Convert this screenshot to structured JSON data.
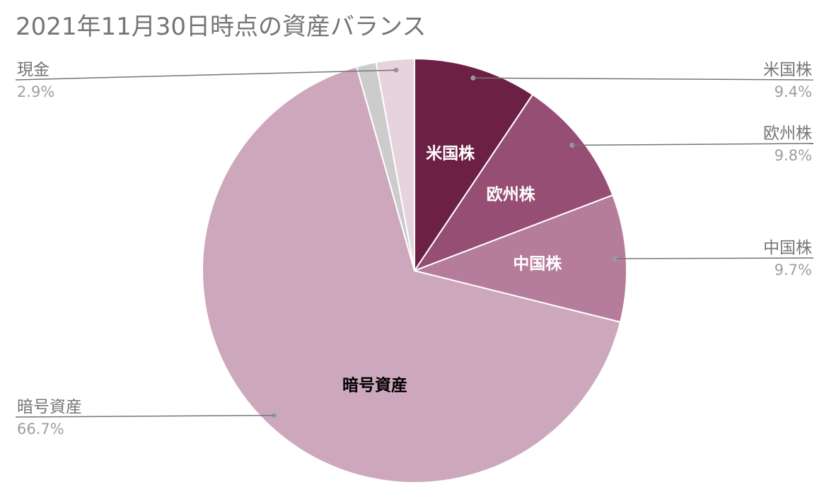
{
  "chart_data": {
    "type": "pie",
    "title": "2021年11月30日時点の資産バランス",
    "slices": [
      {
        "name": "米国株",
        "value": 9.4,
        "value_label": "9.4%",
        "color": "#6c2045",
        "inside_label": true,
        "inside_label_color": "#ffffff",
        "callout": "right"
      },
      {
        "name": "欧州株",
        "value": 9.8,
        "value_label": "9.8%",
        "color": "#974e74",
        "inside_label": true,
        "inside_label_color": "#ffffff",
        "callout": "right"
      },
      {
        "name": "中国株",
        "value": 9.7,
        "value_label": "9.7%",
        "color": "#b67c9b",
        "inside_label": true,
        "inside_label_color": "#ffffff",
        "callout": "right"
      },
      {
        "name": "暗号資産",
        "value": 66.7,
        "value_label": "66.7%",
        "color": "#cda8bd",
        "inside_label": true,
        "inside_label_color": "#000000",
        "callout": "left"
      },
      {
        "name": "",
        "value": 1.5,
        "value_label": "",
        "color": "#cccccc",
        "inside_label": false,
        "callout": "none"
      },
      {
        "name": "現金",
        "value": 2.9,
        "value_label": "2.9%",
        "color": "#e6d3dd",
        "inside_label": false,
        "callout": "left"
      }
    ],
    "start_angle": "12 o'clock",
    "direction": "clockwise",
    "legend": "callout labels"
  }
}
